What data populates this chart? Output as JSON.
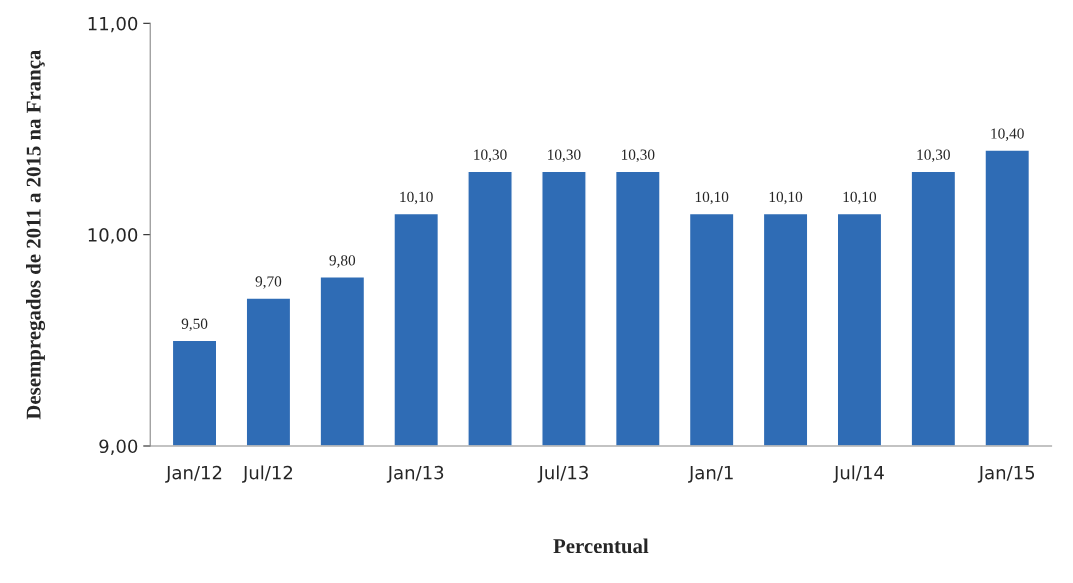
{
  "chart_data": {
    "type": "bar",
    "xlabel": "Percentual",
    "ylabel": "Desempregados de 2011 a 2015 na França",
    "categories": [
      "Jan/12",
      "Jul/12",
      null,
      "Jan/13",
      null,
      "Jul/13",
      null,
      "Jan/1",
      null,
      "Jul/14",
      null,
      "Jan/15"
    ],
    "values": [
      9.5,
      9.7,
      9.8,
      10.1,
      10.3,
      10.3,
      10.3,
      10.1,
      10.1,
      10.1,
      10.3,
      10.4
    ],
    "value_labels": [
      "9,50",
      "9,70",
      "9,80",
      "10,10",
      "10,30",
      "10,30",
      "10,30",
      "10,10",
      "10,10",
      "10,10",
      "10,30",
      "10,40"
    ],
    "color": "#2f6cb5",
    "ylim": [
      9,
      11
    ],
    "yticks": [
      {
        "value": 9,
        "label": "9,00"
      },
      {
        "value": 10,
        "label": "10,00"
      },
      {
        "value": 11,
        "label": "11,00"
      }
    ],
    "grid": false,
    "legend": false
  }
}
